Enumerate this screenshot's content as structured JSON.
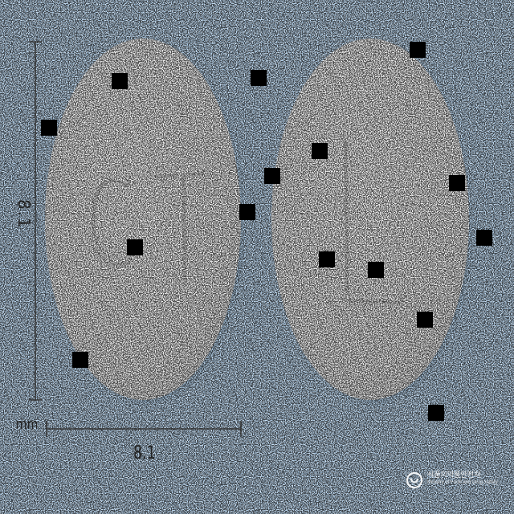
{
  "image": {
    "subject": "two white oval tablets on a blue speckled background",
    "background_color": "#a9cbe9",
    "tablet_color": "#f4f4f4"
  },
  "tablets": [
    {
      "imprint": "CT"
    },
    {
      "imprint": "L"
    }
  ],
  "dimensions": {
    "height_label": "8.1",
    "width_label": "8.1",
    "unit": "mm"
  },
  "watermark": {
    "title": "식품의약품안전처",
    "subtitle": "Ministry of Food and Drug Safety",
    "icon": "mfds-logo-icon"
  }
}
